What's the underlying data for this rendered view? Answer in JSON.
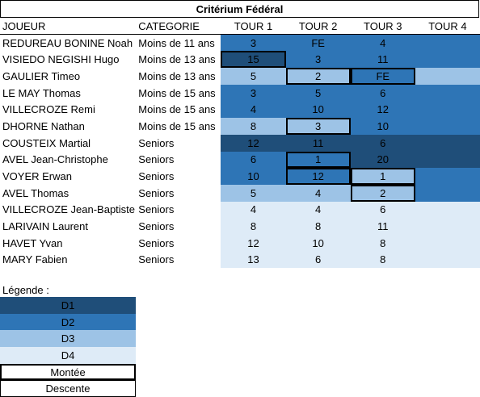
{
  "title": "Critérium Fédéral",
  "headers": [
    "JOUEUR",
    "CATEGORIE",
    "TOUR 1",
    "TOUR 2",
    "TOUR 3",
    "TOUR 4"
  ],
  "colors": {
    "D1": "#1f4e79",
    "D2": "#2e75b6",
    "D3": "#9dc3e6",
    "D4": "#deebf7"
  },
  "rows": [
    {
      "player": "REDUREAU BONINE Noah",
      "category": "Moins de 11 ans",
      "tours": [
        {
          "v": "3",
          "div": "D2"
        },
        {
          "v": "FE",
          "div": "D2"
        },
        {
          "v": "4",
          "div": "D2"
        },
        {
          "v": "",
          "div": "D2"
        }
      ]
    },
    {
      "player": "VISIEDO NEGISHI Hugo",
      "category": "Moins de 13 ans",
      "tours": [
        {
          "v": "15",
          "div": "D1",
          "box": true
        },
        {
          "v": "3",
          "div": "D2"
        },
        {
          "v": "11",
          "div": "D2"
        },
        {
          "v": "",
          "div": "D2"
        }
      ]
    },
    {
      "player": "GAULIER Timeo",
      "category": "Moins de 13 ans",
      "tours": [
        {
          "v": "5",
          "div": "D3"
        },
        {
          "v": "2",
          "div": "D3",
          "box": true
        },
        {
          "v": "FE",
          "div": "D2",
          "box": true
        },
        {
          "v": "",
          "div": "D3"
        }
      ]
    },
    {
      "player": "LE MAY Thomas",
      "category": "Moins de 15 ans",
      "tours": [
        {
          "v": "3",
          "div": "D2"
        },
        {
          "v": "5",
          "div": "D2"
        },
        {
          "v": "6",
          "div": "D2"
        },
        {
          "v": "",
          "div": "D2"
        }
      ]
    },
    {
      "player": "VILLECROZE Remi",
      "category": "Moins de 15 ans",
      "tours": [
        {
          "v": "4",
          "div": "D2"
        },
        {
          "v": "10",
          "div": "D2"
        },
        {
          "v": "12",
          "div": "D2"
        },
        {
          "v": "",
          "div": "D2"
        }
      ]
    },
    {
      "player": "DHORNE Nathan",
      "category": "Moins de 15 ans",
      "tours": [
        {
          "v": "8",
          "div": "D3"
        },
        {
          "v": "3",
          "div": "D3",
          "box": true
        },
        {
          "v": "10",
          "div": "D2"
        },
        {
          "v": "",
          "div": "D2"
        }
      ]
    },
    {
      "player": "COUSTEIX Martial",
      "category": "Seniors",
      "tours": [
        {
          "v": "12",
          "div": "D1"
        },
        {
          "v": "11",
          "div": "D1"
        },
        {
          "v": "6",
          "div": "D1"
        },
        {
          "v": "",
          "div": "D1"
        }
      ]
    },
    {
      "player": "AVEL Jean-Christophe",
      "category": "Seniors",
      "tours": [
        {
          "v": "6",
          "div": "D2"
        },
        {
          "v": "1",
          "div": "D2",
          "box": true,
          "bold": true
        },
        {
          "v": "20",
          "div": "D1"
        },
        {
          "v": "",
          "div": "D1"
        }
      ]
    },
    {
      "player": "VOYER Erwan",
      "category": "Seniors",
      "tours": [
        {
          "v": "10",
          "div": "D2"
        },
        {
          "v": "12",
          "div": "D2",
          "box": true
        },
        {
          "v": "1",
          "div": "D3",
          "box": true,
          "bold": true
        },
        {
          "v": "",
          "div": "D2"
        }
      ]
    },
    {
      "player": "AVEL Thomas",
      "category": "Seniors",
      "tours": [
        {
          "v": "5",
          "div": "D3"
        },
        {
          "v": "4",
          "div": "D3"
        },
        {
          "v": "2",
          "div": "D3",
          "box": true,
          "bold": true
        },
        {
          "v": "",
          "div": "D2"
        }
      ]
    },
    {
      "player": "VILLECROZE Jean-Baptiste",
      "category": "Seniors",
      "tours": [
        {
          "v": "4",
          "div": "D4"
        },
        {
          "v": "4",
          "div": "D4"
        },
        {
          "v": "6",
          "div": "D4"
        },
        {
          "v": "",
          "div": "D4"
        }
      ]
    },
    {
      "player": "LARIVAIN Laurent",
      "category": "Seniors",
      "tours": [
        {
          "v": "8",
          "div": "D4"
        },
        {
          "v": "8",
          "div": "D4"
        },
        {
          "v": "11",
          "div": "D4"
        },
        {
          "v": "",
          "div": "D4"
        }
      ]
    },
    {
      "player": "HAVET Yvan",
      "category": "Seniors",
      "tours": [
        {
          "v": "12",
          "div": "D4"
        },
        {
          "v": "10",
          "div": "D4"
        },
        {
          "v": "8",
          "div": "D4"
        },
        {
          "v": "",
          "div": "D4"
        }
      ]
    },
    {
      "player": "MARY Fabien",
      "category": "Seniors",
      "tours": [
        {
          "v": "13",
          "div": "D4"
        },
        {
          "v": "6",
          "div": "D4"
        },
        {
          "v": "8",
          "div": "D4"
        },
        {
          "v": "",
          "div": "D4"
        }
      ]
    }
  ],
  "legend": {
    "title": "Légende :",
    "items": [
      {
        "label": "D1",
        "style": "D1"
      },
      {
        "label": "D2",
        "style": "D2"
      },
      {
        "label": "D3",
        "style": "D3"
      },
      {
        "label": "D4",
        "style": "D4"
      },
      {
        "label": "Montée",
        "style": "montee"
      },
      {
        "label": "Descente",
        "style": "descente"
      }
    ]
  }
}
